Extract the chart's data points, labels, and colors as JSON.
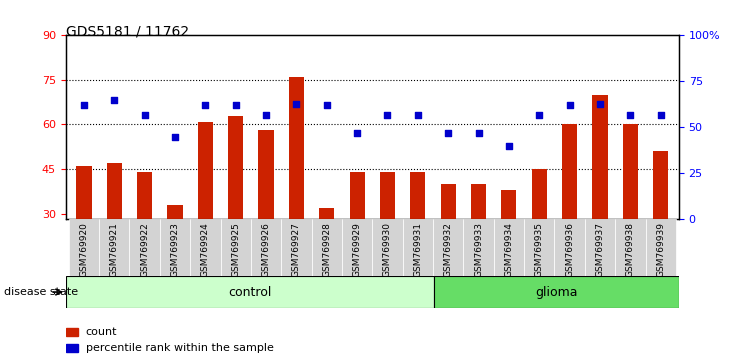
{
  "title": "GDS5181 / 11762",
  "samples": [
    "GSM769920",
    "GSM769921",
    "GSM769922",
    "GSM769923",
    "GSM769924",
    "GSM769925",
    "GSM769926",
    "GSM769927",
    "GSM769928",
    "GSM769929",
    "GSM769930",
    "GSM769931",
    "GSM769932",
    "GSM769933",
    "GSM769934",
    "GSM769935",
    "GSM769936",
    "GSM769937",
    "GSM769938",
    "GSM769939"
  ],
  "bar_values": [
    46,
    47,
    44,
    33,
    61,
    63,
    58,
    76,
    32,
    44,
    44,
    44,
    40,
    40,
    38,
    45,
    60,
    70,
    60,
    51
  ],
  "dot_values": [
    62,
    65,
    57,
    45,
    62,
    62,
    57,
    63,
    62,
    47,
    57,
    57,
    47,
    47,
    40,
    57,
    62,
    63,
    57,
    57
  ],
  "bar_color": "#cc2200",
  "dot_color": "#0000cc",
  "ylim_left": [
    28,
    90
  ],
  "ylim_right": [
    0,
    100
  ],
  "yticks_left": [
    30,
    45,
    60,
    75,
    90
  ],
  "yticks_right": [
    0,
    25,
    50,
    75,
    100
  ],
  "ytick_labels_right": [
    "0",
    "25",
    "50",
    "75",
    "100%"
  ],
  "grid_values": [
    45,
    60,
    75
  ],
  "control_count": 12,
  "glioma_count": 8,
  "control_label": "control",
  "glioma_label": "glioma",
  "disease_state_label": "disease state",
  "legend_bar_label": "count",
  "legend_dot_label": "percentile rank within the sample",
  "background_color": "#ffffff",
  "plot_bg_color": "#ffffff",
  "tick_label_area_color": "#d3d3d3",
  "control_bg_color": "#ccffcc",
  "glioma_bg_color": "#66dd66",
  "bar_bottom": 28
}
